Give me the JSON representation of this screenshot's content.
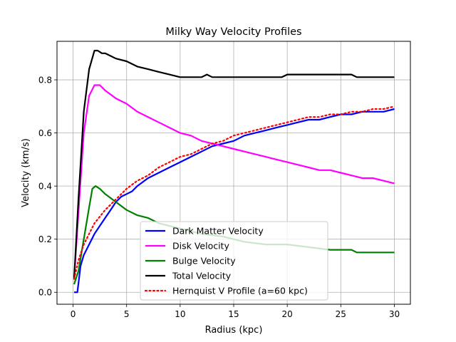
{
  "chart_data": {
    "type": "line",
    "title": "Milky Way Velocity Profiles",
    "xlabel": "Radius (kpc)",
    "ylabel": "Velocity (km/s)",
    "xlim": [
      -1.5,
      31.5
    ],
    "ylim": [
      -0.045,
      0.945
    ],
    "xticks": [
      0,
      5,
      10,
      15,
      20,
      25,
      30
    ],
    "xtick_labels": [
      "0",
      "5",
      "10",
      "15",
      "20",
      "25",
      "30"
    ],
    "yticks": [
      0.0,
      0.2,
      0.4,
      0.6,
      0.8
    ],
    "ytick_labels": [
      "0.0",
      "0.2",
      "0.4",
      "0.6",
      "0.8"
    ],
    "grid": true,
    "legend_position": "lower-center",
    "series": [
      {
        "name": "Dark Matter Velocity",
        "color": "#0000ff",
        "style": "solid",
        "x": [
          0.1,
          0.4,
          0.7,
          1.0,
          1.5,
          2.0,
          2.5,
          3.0,
          3.5,
          4.0,
          4.5,
          5.0,
          5.5,
          6.0,
          7.0,
          8.0,
          9.0,
          10.0,
          11.0,
          12.0,
          13.0,
          14.0,
          15.0,
          16.0,
          17.0,
          18.0,
          19.0,
          20.0,
          21.0,
          22.0,
          23.0,
          24.0,
          25.0,
          26.0,
          27.0,
          28.0,
          29.0,
          30.0
        ],
        "y": [
          0.0,
          0.0,
          0.1,
          0.14,
          0.18,
          0.22,
          0.25,
          0.28,
          0.31,
          0.34,
          0.36,
          0.37,
          0.38,
          0.4,
          0.43,
          0.45,
          0.47,
          0.49,
          0.51,
          0.53,
          0.55,
          0.56,
          0.57,
          0.59,
          0.6,
          0.61,
          0.62,
          0.63,
          0.64,
          0.65,
          0.65,
          0.66,
          0.67,
          0.67,
          0.68,
          0.68,
          0.68,
          0.69
        ]
      },
      {
        "name": "Disk Velocity",
        "color": "#ff00ff",
        "style": "solid",
        "x": [
          0.1,
          0.5,
          1.0,
          1.5,
          2.0,
          2.5,
          3.0,
          4.0,
          5.0,
          6.0,
          7.0,
          8.0,
          9.0,
          10.0,
          11.0,
          12.0,
          13.0,
          14.0,
          15.0,
          16.0,
          17.0,
          18.0,
          19.0,
          20.0,
          21.0,
          22.0,
          23.0,
          24.0,
          25.0,
          26.0,
          27.0,
          28.0,
          29.0,
          30.0
        ],
        "y": [
          0.05,
          0.3,
          0.6,
          0.74,
          0.78,
          0.78,
          0.76,
          0.73,
          0.71,
          0.68,
          0.66,
          0.64,
          0.62,
          0.6,
          0.59,
          0.57,
          0.56,
          0.55,
          0.54,
          0.53,
          0.52,
          0.51,
          0.5,
          0.49,
          0.48,
          0.47,
          0.46,
          0.46,
          0.45,
          0.44,
          0.43,
          0.43,
          0.42,
          0.41
        ]
      },
      {
        "name": "Bulge Velocity",
        "color": "#008000",
        "style": "solid",
        "x": [
          0.1,
          0.5,
          1.0,
          1.5,
          1.8,
          2.1,
          2.5,
          3.0,
          4.0,
          5.0,
          6.0,
          7.0,
          8.0,
          9.0,
          10.0,
          12.0,
          14.0,
          16.0,
          18.0,
          20.0,
          22.0,
          24.0,
          26.0,
          26.5,
          28.0,
          30.0
        ],
        "y": [
          0.03,
          0.08,
          0.2,
          0.32,
          0.39,
          0.4,
          0.39,
          0.37,
          0.34,
          0.31,
          0.29,
          0.28,
          0.26,
          0.25,
          0.24,
          0.22,
          0.21,
          0.19,
          0.18,
          0.18,
          0.17,
          0.16,
          0.16,
          0.15,
          0.15,
          0.15
        ]
      },
      {
        "name": "Total Velocity",
        "color": "#000000",
        "style": "solid",
        "x": [
          0.1,
          0.5,
          1.0,
          1.5,
          2.0,
          2.3,
          2.7,
          3.0,
          3.5,
          4.0,
          5.0,
          6.0,
          7.0,
          8.0,
          9.0,
          10.0,
          11.0,
          12.0,
          12.5,
          13.0,
          14.0,
          16.0,
          18.0,
          19.5,
          20.0,
          20.5,
          21.0,
          22.0,
          24.0,
          26.0,
          26.5,
          28.0,
          30.0
        ],
        "y": [
          0.05,
          0.35,
          0.68,
          0.84,
          0.91,
          0.91,
          0.9,
          0.9,
          0.89,
          0.88,
          0.87,
          0.85,
          0.84,
          0.83,
          0.82,
          0.81,
          0.81,
          0.81,
          0.82,
          0.81,
          0.81,
          0.81,
          0.81,
          0.81,
          0.82,
          0.82,
          0.82,
          0.82,
          0.82,
          0.82,
          0.81,
          0.81,
          0.81
        ]
      },
      {
        "name": "Hernquist V Profile (a=60 kpc)",
        "color": "#ff0000",
        "style": "dotted",
        "x": [
          0.1,
          0.5,
          1.0,
          1.5,
          2.0,
          3.0,
          4.0,
          5.0,
          6.0,
          7.0,
          8.0,
          9.0,
          10.0,
          11.0,
          12.0,
          13.0,
          14.0,
          15.0,
          16.0,
          17.0,
          18.0,
          19.0,
          20.0,
          21.0,
          22.0,
          23.0,
          24.0,
          25.0,
          26.0,
          27.0,
          28.0,
          29.0,
          30.0
        ],
        "y": [
          0.05,
          0.12,
          0.18,
          0.22,
          0.26,
          0.31,
          0.35,
          0.39,
          0.42,
          0.44,
          0.47,
          0.49,
          0.51,
          0.52,
          0.54,
          0.56,
          0.57,
          0.59,
          0.6,
          0.61,
          0.62,
          0.63,
          0.64,
          0.65,
          0.66,
          0.66,
          0.67,
          0.67,
          0.68,
          0.68,
          0.69,
          0.69,
          0.7
        ]
      }
    ]
  }
}
